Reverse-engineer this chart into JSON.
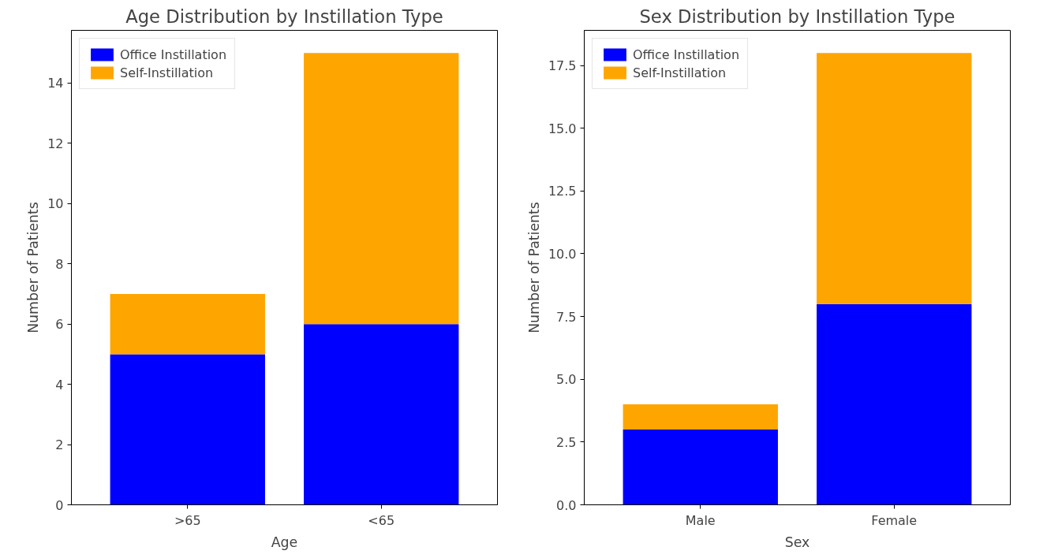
{
  "chart_data": [
    {
      "type": "bar",
      "title": "Age Distribution by Instillation Type",
      "xlabel": "Age",
      "ylabel": "Number of Patients",
      "categories": [
        ">65",
        "<65"
      ],
      "stacked": true,
      "legend": "top left",
      "grid": false,
      "series": [
        {
          "name": "Office Instillation",
          "color": "#0000ff",
          "values": [
            5,
            6
          ]
        },
        {
          "name": "Self-Instillation",
          "color": "#ffa500",
          "values": [
            2,
            9
          ]
        }
      ],
      "ylim": [
        0,
        15.75
      ],
      "yticks": [
        0,
        2,
        4,
        6,
        8,
        10,
        12,
        14
      ]
    },
    {
      "type": "bar",
      "title": "Sex Distribution by Instillation Type",
      "xlabel": "Sex",
      "ylabel": "Number of Patients",
      "categories": [
        "Male",
        "Female"
      ],
      "stacked": true,
      "legend": "top left",
      "grid": false,
      "series": [
        {
          "name": "Office Instillation",
          "color": "#0000ff",
          "values": [
            3,
            8
          ]
        },
        {
          "name": "Self-Instillation",
          "color": "#ffa500",
          "values": [
            1,
            10
          ]
        }
      ],
      "ylim": [
        0,
        18.9
      ],
      "yticks": [
        {
          "value": 0,
          "label": "0.0"
        },
        {
          "value": 2.5,
          "label": "2.5"
        },
        {
          "value": 5,
          "label": "5.0"
        },
        {
          "value": 7.5,
          "label": "7.5"
        },
        {
          "value": 10,
          "label": "10.0"
        },
        {
          "value": 12.5,
          "label": "12.5"
        },
        {
          "value": 15,
          "label": "15.0"
        },
        {
          "value": 17.5,
          "label": "17.5"
        }
      ]
    }
  ]
}
